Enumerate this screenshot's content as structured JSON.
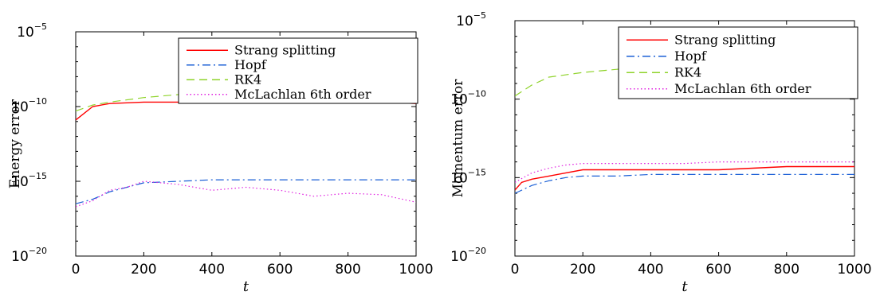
{
  "chart_data": [
    {
      "type": "line",
      "xlabel": "t",
      "ylabel": "Energy error",
      "xlim": [
        0,
        1000
      ],
      "ylim_exponent": [
        -20,
        -5
      ],
      "yscale": "log",
      "xticks": [
        "0",
        "200",
        "400",
        "600",
        "800",
        "1000"
      ],
      "yticks": [
        {
          "base": "10",
          "exp": "−5"
        },
        {
          "base": "10",
          "exp": "−10"
        },
        {
          "base": "10",
          "exp": "−15"
        },
        {
          "base": "10",
          "exp": "−20"
        }
      ],
      "legend_position": "top-right",
      "series": [
        {
          "name": "Strang splitting",
          "color": "#ff0000",
          "style": "solid",
          "x": [
            0,
            50,
            100,
            200,
            300,
            400,
            500,
            600,
            700,
            800,
            900,
            1000
          ],
          "log10_y": [
            -10.9,
            -10.0,
            -9.8,
            -9.7,
            -9.7,
            -9.7,
            -9.7,
            -9.7,
            -9.7,
            -9.7,
            -9.7,
            -9.8
          ]
        },
        {
          "name": "Hopf",
          "color": "#1a5fd6",
          "style": "dashdot",
          "x": [
            0,
            50,
            100,
            150,
            200,
            300,
            400,
            500,
            600,
            700,
            800,
            900,
            1000
          ],
          "log10_y": [
            -16.5,
            -16.2,
            -15.7,
            -15.4,
            -15.1,
            -15.0,
            -14.9,
            -14.9,
            -14.9,
            -14.9,
            -14.9,
            -14.9,
            -14.9
          ]
        },
        {
          "name": "RK4",
          "color": "#8fd32a",
          "style": "dashed",
          "x": [
            0,
            50,
            100,
            200,
            300,
            400,
            500,
            600,
            700,
            800,
            900,
            1000
          ],
          "log10_y": [
            -10.3,
            -9.9,
            -9.7,
            -9.4,
            -9.2,
            -9.0,
            -8.9,
            -8.8,
            -8.7,
            -8.6,
            -8.5,
            -8.4
          ]
        },
        {
          "name": "McLachlan 6th order",
          "color": "#e020e0",
          "style": "dotted",
          "x": [
            0,
            50,
            100,
            150,
            200,
            300,
            400,
            500,
            600,
            700,
            800,
            900,
            1000
          ],
          "log10_y": [
            -16.7,
            -16.3,
            -15.6,
            -15.4,
            -15.0,
            -15.2,
            -15.6,
            -15.4,
            -15.6,
            -16.0,
            -15.8,
            -15.9,
            -16.4
          ]
        }
      ]
    },
    {
      "type": "line",
      "xlabel": "t",
      "ylabel": "Momentum error",
      "xlim": [
        0,
        1000
      ],
      "ylim_exponent": [
        -20,
        -5
      ],
      "yscale": "log",
      "xticks": [
        "0",
        "200",
        "400",
        "600",
        "800",
        "1000"
      ],
      "yticks": [
        {
          "base": "10",
          "exp": "−5"
        },
        {
          "base": "10",
          "exp": "−10"
        },
        {
          "base": "10",
          "exp": "−15"
        },
        {
          "base": "10",
          "exp": "−20"
        }
      ],
      "legend_position": "top-right",
      "series": [
        {
          "name": "Strang splitting",
          "color": "#ff0000",
          "style": "solid",
          "x": [
            0,
            20,
            50,
            100,
            150,
            200,
            300,
            400,
            500,
            600,
            700,
            800,
            900,
            1000
          ],
          "log10_y": [
            -15.8,
            -15.3,
            -15.1,
            -14.9,
            -14.7,
            -14.5,
            -14.5,
            -14.5,
            -14.5,
            -14.5,
            -14.4,
            -14.3,
            -14.3,
            -14.3
          ]
        },
        {
          "name": "Hopf",
          "color": "#1a5fd6",
          "style": "dashdot",
          "x": [
            0,
            50,
            100,
            150,
            200,
            300,
            400,
            500,
            600,
            700,
            800,
            900,
            1000
          ],
          "log10_y": [
            -16.0,
            -15.5,
            -15.2,
            -15.0,
            -14.9,
            -14.9,
            -14.8,
            -14.8,
            -14.8,
            -14.8,
            -14.8,
            -14.8,
            -14.8
          ]
        },
        {
          "name": "RK4",
          "color": "#8fd32a",
          "style": "dashed",
          "x": [
            0,
            50,
            100,
            200,
            300,
            400,
            500,
            600,
            700,
            800,
            900,
            1000
          ],
          "log10_y": [
            -9.8,
            -9.1,
            -8.6,
            -8.3,
            -8.1,
            -7.9,
            -7.8,
            -7.7,
            -7.6,
            -7.5,
            -7.4,
            -7.3
          ]
        },
        {
          "name": "McLachlan 6th order",
          "color": "#e020e0",
          "style": "dotted",
          "x": [
            0,
            50,
            100,
            150,
            200,
            300,
            400,
            500,
            600,
            700,
            800,
            900,
            1000
          ],
          "log10_y": [
            -15.3,
            -14.7,
            -14.4,
            -14.2,
            -14.1,
            -14.1,
            -14.1,
            -14.1,
            -14.0,
            -14.0,
            -14.0,
            -14.0,
            -14.0
          ]
        }
      ]
    }
  ]
}
